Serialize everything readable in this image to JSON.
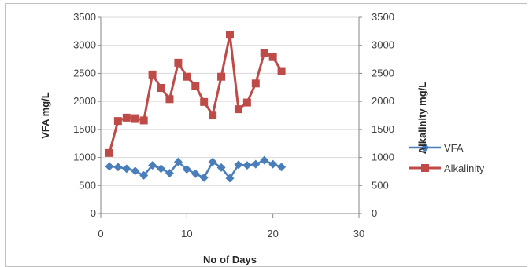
{
  "chart_data": {
    "type": "line",
    "title": "",
    "xlabel": "No of Days",
    "ylabel_left": "VFA mg/L",
    "ylabel_right": "Alkalinity mg/L",
    "xlim": [
      0,
      30
    ],
    "ylim": [
      0,
      3500
    ],
    "x_ticks": [
      0,
      10,
      20,
      30
    ],
    "y_ticks": [
      0,
      500,
      1000,
      1500,
      2000,
      2500,
      3000,
      3500
    ],
    "grid": "horizontal",
    "legend_position": "right",
    "series": [
      {
        "name": "VFA",
        "axis": "left",
        "marker": "diamond",
        "color": "#4a7ebb",
        "x": [
          1,
          2,
          3,
          4,
          5,
          6,
          7,
          8,
          9,
          10,
          11,
          12,
          13,
          14,
          15,
          16,
          17,
          18,
          19,
          20,
          21
        ],
        "values": [
          840,
          830,
          800,
          760,
          680,
          860,
          800,
          720,
          920,
          790,
          710,
          640,
          920,
          820,
          630,
          870,
          860,
          880,
          950,
          880,
          830
        ]
      },
      {
        "name": "Alkalinity",
        "axis": "right",
        "marker": "square",
        "color": "#be4b48",
        "x": [
          1,
          2,
          3,
          4,
          5,
          6,
          7,
          8,
          9,
          10,
          11,
          12,
          13,
          14,
          15,
          16,
          17,
          18,
          19,
          20,
          21
        ],
        "values": [
          1080,
          1650,
          1710,
          1700,
          1660,
          2480,
          2240,
          2040,
          2690,
          2440,
          2280,
          1990,
          1760,
          2440,
          3190,
          1860,
          1980,
          2320,
          2870,
          2790,
          2540
        ]
      }
    ]
  }
}
